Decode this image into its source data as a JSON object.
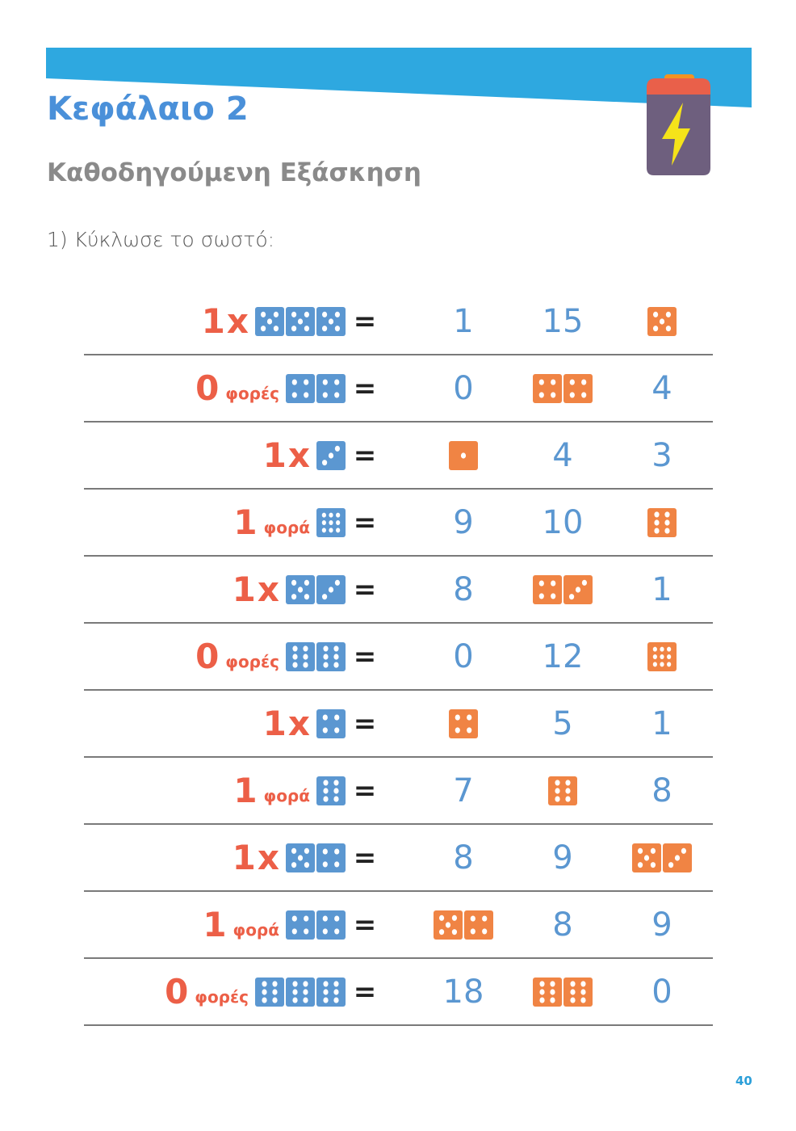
{
  "header": {
    "title": "Κεφάλαιο 2",
    "subtitle": "Καθοδηγούμενη Εξάσκηση",
    "instruction": "1) Κύκλωσε το σωστό:",
    "icon": "battery-charging-icon"
  },
  "colors": {
    "banner": "#2ea8e0",
    "title": "#4a90d9",
    "blue_die": "#5b97d1",
    "orange_die": "#f08444",
    "multiplier": "#ec5f47"
  },
  "equals_sign": "=",
  "rows": [
    {
      "num": "1",
      "word": "",
      "x": "x",
      "dice": [
        5,
        5,
        5
      ],
      "options": [
        {
          "text": "1"
        },
        {
          "text": "15"
        },
        {
          "dice": [
            5
          ]
        }
      ]
    },
    {
      "num": "0",
      "word": "φορές",
      "x": "",
      "dice": [
        4,
        4
      ],
      "options": [
        {
          "text": "0"
        },
        {
          "dice": [
            4,
            4
          ]
        },
        {
          "text": "4"
        }
      ]
    },
    {
      "num": "1",
      "word": "",
      "x": "x",
      "dice": [
        3
      ],
      "options": [
        {
          "dice": [
            1
          ]
        },
        {
          "text": "4"
        },
        {
          "text": "3"
        }
      ]
    },
    {
      "num": "1",
      "word": "φορά",
      "x": "",
      "dice": [
        9
      ],
      "options": [
        {
          "text": "9"
        },
        {
          "text": "10"
        },
        {
          "dice": [
            6
          ]
        }
      ]
    },
    {
      "num": "1",
      "word": "",
      "x": "x",
      "dice": [
        5,
        3
      ],
      "options": [
        {
          "text": "8"
        },
        {
          "dice": [
            4,
            3
          ]
        },
        {
          "text": "1"
        }
      ]
    },
    {
      "num": "0",
      "word": "φορές",
      "x": "",
      "dice": [
        6,
        6
      ],
      "options": [
        {
          "text": "0"
        },
        {
          "text": "12"
        },
        {
          "dice": [
            9
          ]
        }
      ]
    },
    {
      "num": "1",
      "word": "",
      "x": "x",
      "dice": [
        4
      ],
      "options": [
        {
          "dice": [
            4
          ]
        },
        {
          "text": "5"
        },
        {
          "text": "1"
        }
      ]
    },
    {
      "num": "1",
      "word": "φορά",
      "x": "",
      "dice": [
        6
      ],
      "options": [
        {
          "text": "7"
        },
        {
          "dice": [
            6
          ]
        },
        {
          "text": "8"
        }
      ]
    },
    {
      "num": "1",
      "word": "",
      "x": "x",
      "dice": [
        5,
        4
      ],
      "options": [
        {
          "text": "8"
        },
        {
          "text": "9"
        },
        {
          "dice": [
            5,
            3
          ]
        }
      ]
    },
    {
      "num": "1",
      "word": "φορά",
      "x": "",
      "dice": [
        4,
        4
      ],
      "options": [
        {
          "dice": [
            5,
            4
          ]
        },
        {
          "text": "8"
        },
        {
          "text": "9"
        }
      ]
    },
    {
      "num": "0",
      "word": "φορές",
      "x": "",
      "dice": [
        6,
        6,
        6
      ],
      "options": [
        {
          "text": "18"
        },
        {
          "dice": [
            6,
            6
          ]
        },
        {
          "text": "0"
        }
      ]
    }
  ],
  "page_number": "40"
}
